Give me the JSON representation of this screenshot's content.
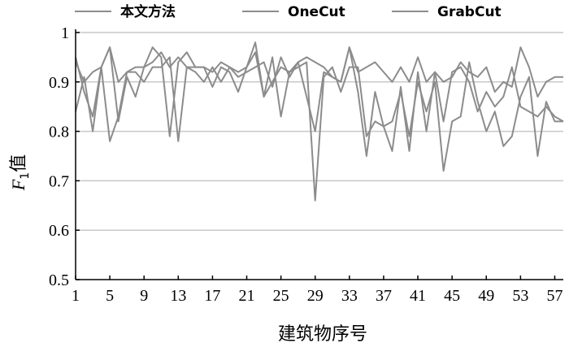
{
  "chart_data": {
    "type": "line",
    "title": "",
    "xlabel": "建筑物序号",
    "ylabel": "F1值",
    "ylabel_main": "F",
    "ylabel_sub": "1",
    "ylabel_suffix": "值",
    "ylim": [
      0.5,
      1.0
    ],
    "xlim": [
      1,
      58
    ],
    "grid": "horizontal",
    "legend_position": "top",
    "x_ticks": [
      1,
      5,
      9,
      13,
      17,
      21,
      25,
      29,
      33,
      37,
      41,
      45,
      49,
      53,
      57
    ],
    "x_tick_labels": [
      "1",
      "5",
      "9",
      "13",
      "17",
      "21",
      "25",
      "29",
      "33",
      "37",
      "41",
      "45",
      "49",
      "53",
      "57"
    ],
    "y_ticks": [
      0.5,
      0.6,
      0.7,
      0.8,
      0.9,
      1.0
    ],
    "y_tick_labels": [
      "0.5",
      "0.6",
      "0.7",
      "0.8",
      "0.9",
      "1"
    ],
    "colors": {
      "line": "#8c8c8c",
      "grid": "#c8c8c8",
      "axis": "#000000"
    },
    "x": [
      1,
      2,
      3,
      4,
      5,
      6,
      7,
      8,
      9,
      10,
      11,
      12,
      13,
      14,
      15,
      16,
      17,
      18,
      19,
      20,
      21,
      22,
      23,
      24,
      25,
      26,
      27,
      28,
      29,
      30,
      31,
      32,
      33,
      34,
      35,
      36,
      37,
      38,
      39,
      40,
      41,
      42,
      43,
      44,
      45,
      46,
      47,
      48,
      49,
      50,
      51,
      52,
      53,
      54,
      55,
      56,
      57,
      58
    ],
    "series": [
      {
        "name": "本文方法",
        "values": [
          0.94,
          0.9,
          0.92,
          0.93,
          0.97,
          0.9,
          0.92,
          0.93,
          0.93,
          0.94,
          0.96,
          0.93,
          0.95,
          0.93,
          0.93,
          0.93,
          0.92,
          0.94,
          0.93,
          0.91,
          0.92,
          0.93,
          0.94,
          0.89,
          0.95,
          0.91,
          0.94,
          0.95,
          0.94,
          0.93,
          0.91,
          0.9,
          0.97,
          0.92,
          0.93,
          0.94,
          0.92,
          0.9,
          0.93,
          0.9,
          0.95,
          0.9,
          0.92,
          0.9,
          0.91,
          0.94,
          0.92,
          0.91,
          0.93,
          0.88,
          0.9,
          0.89,
          0.97,
          0.93,
          0.87,
          0.9,
          0.91,
          0.91
        ]
      },
      {
        "name": "OneCut",
        "values": [
          0.84,
          0.91,
          0.8,
          0.93,
          0.97,
          0.82,
          0.91,
          0.87,
          0.93,
          0.97,
          0.95,
          0.79,
          0.94,
          0.96,
          0.93,
          0.93,
          0.89,
          0.93,
          0.92,
          0.88,
          0.93,
          0.98,
          0.87,
          0.95,
          0.83,
          0.92,
          0.94,
          0.87,
          0.8,
          0.92,
          0.91,
          0.9,
          0.97,
          0.88,
          0.75,
          0.88,
          0.81,
          0.82,
          0.88,
          0.79,
          0.9,
          0.84,
          0.9,
          0.72,
          0.82,
          0.83,
          0.94,
          0.86,
          0.8,
          0.84,
          0.77,
          0.79,
          0.87,
          0.91,
          0.75,
          0.86,
          0.82,
          0.82
        ]
      },
      {
        "name": "GrabCut",
        "values": [
          0.95,
          0.88,
          0.83,
          0.93,
          0.78,
          0.83,
          0.92,
          0.92,
          0.9,
          0.93,
          0.93,
          0.95,
          0.78,
          0.93,
          0.92,
          0.9,
          0.93,
          0.9,
          0.93,
          0.92,
          0.93,
          0.96,
          0.87,
          0.9,
          0.93,
          0.92,
          0.93,
          0.94,
          0.66,
          0.91,
          0.93,
          0.88,
          0.93,
          0.93,
          0.79,
          0.82,
          0.81,
          0.76,
          0.89,
          0.76,
          0.92,
          0.8,
          0.92,
          0.82,
          0.92,
          0.93,
          0.9,
          0.84,
          0.88,
          0.85,
          0.87,
          0.93,
          0.85,
          0.84,
          0.83,
          0.85,
          0.83,
          0.82
        ]
      }
    ]
  }
}
